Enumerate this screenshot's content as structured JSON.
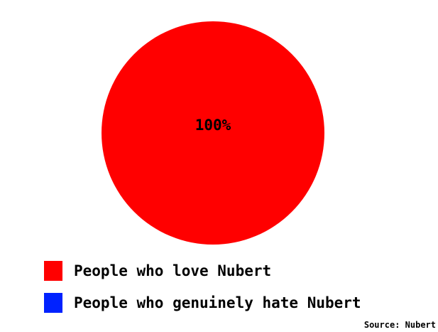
{
  "chart_data": {
    "type": "pie",
    "slices": [
      {
        "label": "People who love Nubert",
        "value": 100,
        "color": "#ff0000",
        "data_label": "100%"
      },
      {
        "label": "People who genuinely hate Nubert",
        "value": 0,
        "color": "#0022ff"
      }
    ],
    "legend_position": "bottom",
    "source": "Source: Nubert"
  }
}
